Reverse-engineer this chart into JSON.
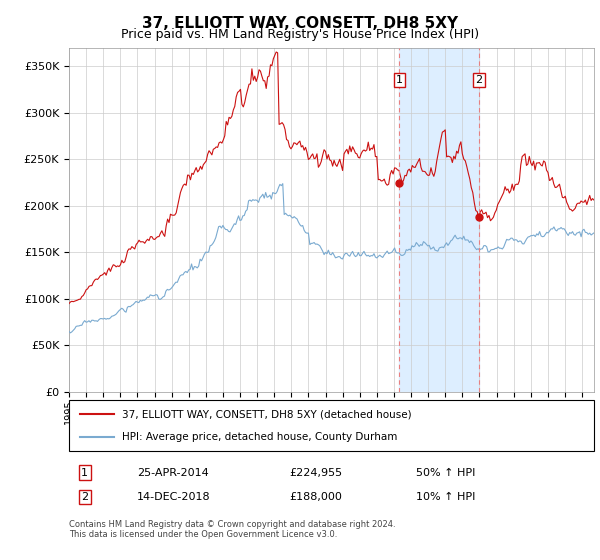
{
  "title": "37, ELLIOTT WAY, CONSETT, DH8 5XY",
  "subtitle": "Price paid vs. HM Land Registry's House Price Index (HPI)",
  "ylabel_ticks": [
    "£0",
    "£50K",
    "£100K",
    "£150K",
    "£200K",
    "£250K",
    "£300K",
    "£350K"
  ],
  "ytick_values": [
    0,
    50000,
    100000,
    150000,
    200000,
    250000,
    300000,
    350000
  ],
  "ylim": [
    0,
    370000
  ],
  "xlim_start": 1995.0,
  "xlim_end": 2025.7,
  "hpi_color": "#7aaad0",
  "price_color": "#cc1111",
  "shaded_color": "#ddeeff",
  "marker1_x": 2014.32,
  "marker1_y": 224955,
  "marker2_x": 2018.96,
  "marker2_y": 188000,
  "marker1_label": "1",
  "marker2_label": "2",
  "vline1_x": 2014.32,
  "vline2_x": 2018.96,
  "legend_line1": "37, ELLIOTT WAY, CONSETT, DH8 5XY (detached house)",
  "legend_line2": "HPI: Average price, detached house, County Durham",
  "table_row1_num": "1",
  "table_row1_date": "25-APR-2014",
  "table_row1_price": "£224,955",
  "table_row1_hpi": "50% ↑ HPI",
  "table_row2_num": "2",
  "table_row2_date": "14-DEC-2018",
  "table_row2_price": "£188,000",
  "table_row2_hpi": "10% ↑ HPI",
  "footer": "Contains HM Land Registry data © Crown copyright and database right 2024.\nThis data is licensed under the Open Government Licence v3.0.",
  "grid_color": "#cccccc",
  "background_color": "#ffffff",
  "title_fontsize": 11,
  "subtitle_fontsize": 9
}
